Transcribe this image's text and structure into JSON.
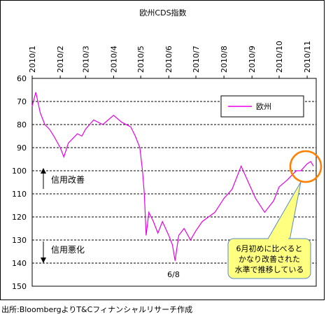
{
  "chart_data": {
    "type": "line",
    "title": "欧州CDS指数",
    "x_tick_labels": [
      "2010/1",
      "2010/2",
      "2010/3",
      "2010/4",
      "2010/5",
      "2010/6",
      "2010/7",
      "2010/8",
      "2010/9",
      "2010/10",
      "2010/11"
    ],
    "y_tick_labels": [
      "60",
      "70",
      "80",
      "90",
      "100",
      "110",
      "120",
      "130",
      "140",
      "150"
    ],
    "ylim": [
      150,
      60
    ],
    "y_inverted": true,
    "grid": "horizontal-dashed",
    "legend_placement": "top-right",
    "series": [
      {
        "name": "欧州",
        "color": "#e600e6",
        "x": [
          "2010-01-01",
          "2010-01-05",
          "2010-01-10",
          "2010-01-15",
          "2010-01-20",
          "2010-01-25",
          "2010-02-01",
          "2010-02-05",
          "2010-02-10",
          "2010-02-15",
          "2010-02-20",
          "2010-02-25",
          "2010-03-01",
          "2010-03-10",
          "2010-03-20",
          "2010-04-01",
          "2010-04-10",
          "2010-04-20",
          "2010-04-25",
          "2010-04-30",
          "2010-05-03",
          "2010-05-05",
          "2010-05-07",
          "2010-05-10",
          "2010-05-15",
          "2010-05-20",
          "2010-05-25",
          "2010-06-01",
          "2010-06-05",
          "2010-06-08",
          "2010-06-12",
          "2010-06-18",
          "2010-06-25",
          "2010-07-01",
          "2010-07-08",
          "2010-07-15",
          "2010-07-22",
          "2010-08-01",
          "2010-08-10",
          "2010-08-20",
          "2010-08-28",
          "2010-09-05",
          "2010-09-15",
          "2010-09-25",
          "2010-10-01",
          "2010-10-10",
          "2010-10-20",
          "2010-10-25",
          "2010-11-01",
          "2010-11-05",
          "2010-11-08"
        ],
        "y": [
          72,
          66,
          75,
          80,
          82,
          85,
          90,
          94,
          88,
          86,
          84,
          85,
          82,
          78,
          80,
          76,
          79,
          81,
          85,
          90,
          100,
          110,
          128,
          118,
          122,
          127,
          122,
          128,
          132,
          139,
          128,
          125,
          130,
          126,
          122,
          120,
          118,
          112,
          108,
          98,
          105,
          112,
          118,
          113,
          107,
          104,
          100,
          100,
          97,
          96,
          98
        ]
      }
    ]
  },
  "annotations": {
    "improve_label": "信用改善",
    "worsen_label": "信用悪化",
    "date_label": "6/8",
    "callout_text": [
      "6月初めに比べると",
      "かなり改善された",
      "水準で推移している"
    ]
  },
  "source_note": "出所:BloombergよりT&Cフィナンシャルリサーチ作成",
  "colors": {
    "series": "#e600e6",
    "callout_fill": "#ffff80",
    "callout_border": "#5a8ac6",
    "circle": "#ff8000"
  }
}
